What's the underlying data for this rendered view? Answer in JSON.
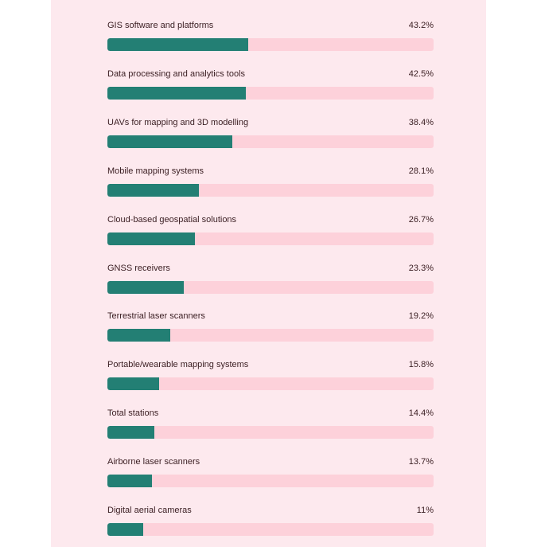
{
  "chart_data": {
    "type": "bar",
    "orientation": "horizontal",
    "xlim": [
      0,
      100
    ],
    "unit": "%",
    "categories": [
      "GIS software and platforms",
      "Data processing and analytics tools",
      "UAVs for mapping and 3D modelling",
      "Mobile mapping systems",
      "Cloud-based geospatial solutions",
      "GNSS receivers",
      "Terrestrial laser scanners",
      "Portable/wearable mapping systems",
      "Total stations",
      "Airborne laser scanners",
      "Digital aerial cameras"
    ],
    "values": [
      43.2,
      42.5,
      38.4,
      28.1,
      26.7,
      23.3,
      19.2,
      15.8,
      14.4,
      13.7,
      11
    ],
    "value_labels": [
      "43.2%",
      "42.5%",
      "38.4%",
      "28.1%",
      "26.7%",
      "23.3%",
      "19.2%",
      "15.8%",
      "14.4%",
      "13.7%",
      "11%"
    ],
    "colors": {
      "bar": "#237f74",
      "track": "#fdd1da",
      "background": "#fde9ee",
      "text": "#3a1e22"
    }
  }
}
